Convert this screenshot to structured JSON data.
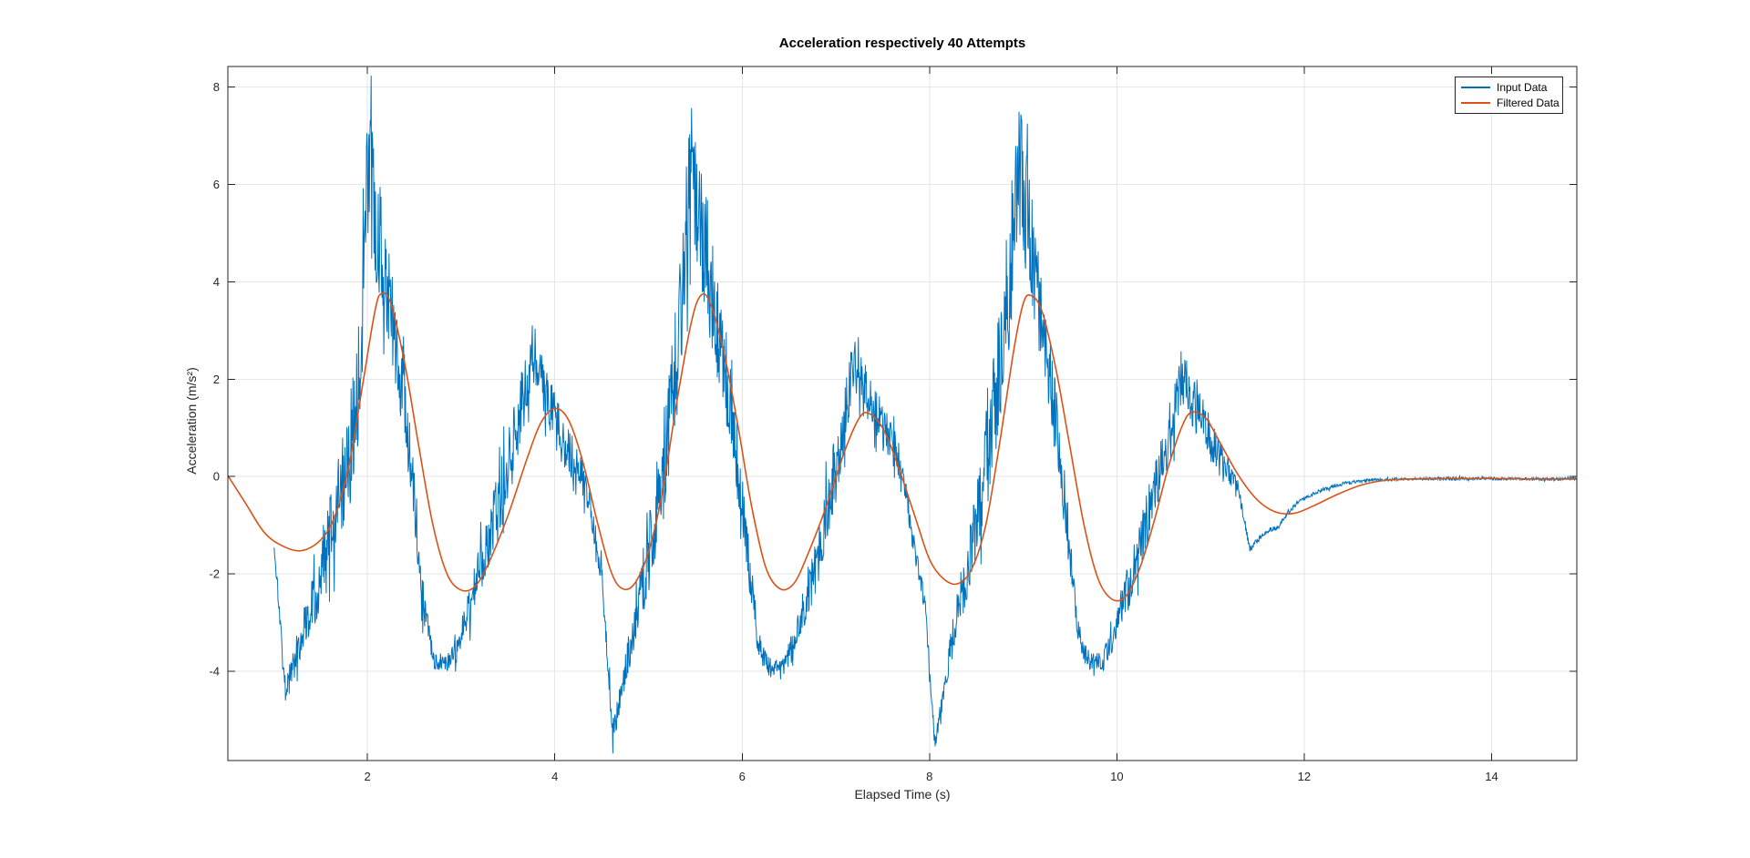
{
  "figure": {
    "title": "Acceleration respectively 40 Attempts",
    "xlabel": "Elapsed Time (s)",
    "ylabel": "Acceleration (m/s²)"
  },
  "chart_data": {
    "type": "line",
    "title": "Acceleration respectively 40 Attempts",
    "xlabel": "Elapsed Time (s)",
    "ylabel": "Acceleration (m/s²)",
    "xlim": [
      0.51,
      14.91
    ],
    "ylim": [
      -5.83,
      8.42
    ],
    "x_ticks": [
      2,
      4,
      6,
      8,
      10,
      12,
      14
    ],
    "y_ticks": [
      -4,
      -2,
      0,
      2,
      4,
      6,
      8
    ],
    "grid": true,
    "grid_color": "#e6e6e6",
    "axis_color": "#262626",
    "legend_position": "northeast",
    "series": [
      {
        "name": "Input Data",
        "color": "#0072BD",
        "style": "noisy",
        "sample_step": 0.005,
        "seed": 1337,
        "midline": [
          [
            1.0,
            -1.4
          ],
          [
            1.05,
            -2.5
          ],
          [
            1.12,
            -4.35
          ],
          [
            1.2,
            -3.9
          ],
          [
            1.35,
            -2.9
          ],
          [
            1.5,
            -2.0
          ],
          [
            1.65,
            -1.0
          ],
          [
            1.8,
            0.3
          ],
          [
            1.92,
            2.2
          ],
          [
            2.0,
            6.3
          ],
          [
            2.05,
            5.8
          ],
          [
            2.15,
            4.6
          ],
          [
            2.3,
            2.8
          ],
          [
            2.45,
            0.6
          ],
          [
            2.6,
            -2.6
          ],
          [
            2.7,
            -3.75
          ],
          [
            2.85,
            -3.85
          ],
          [
            2.95,
            -3.6
          ],
          [
            3.1,
            -2.6
          ],
          [
            3.3,
            -1.2
          ],
          [
            3.5,
            0.2
          ],
          [
            3.65,
            1.5
          ],
          [
            3.78,
            2.4
          ],
          [
            3.9,
            1.7
          ],
          [
            4.05,
            0.9
          ],
          [
            4.2,
            0.35
          ],
          [
            4.35,
            -0.3
          ],
          [
            4.5,
            -2.0
          ],
          [
            4.62,
            -5.3
          ],
          [
            4.72,
            -4.3
          ],
          [
            4.85,
            -3.0
          ],
          [
            5.0,
            -1.6
          ],
          [
            5.15,
            0.0
          ],
          [
            5.3,
            2.3
          ],
          [
            5.45,
            6.6
          ],
          [
            5.55,
            5.3
          ],
          [
            5.7,
            3.6
          ],
          [
            5.9,
            1.2
          ],
          [
            6.05,
            -1.5
          ],
          [
            6.18,
            -3.5
          ],
          [
            6.3,
            -3.95
          ],
          [
            6.45,
            -3.9
          ],
          [
            6.6,
            -3.1
          ],
          [
            6.8,
            -1.7
          ],
          [
            7.0,
            0.2
          ],
          [
            7.18,
            2.3
          ],
          [
            7.3,
            1.9
          ],
          [
            7.45,
            1.2
          ],
          [
            7.6,
            0.7
          ],
          [
            7.72,
            0.1
          ],
          [
            7.82,
            -1.3
          ],
          [
            7.95,
            -2.6
          ],
          [
            8.06,
            -5.55
          ],
          [
            8.18,
            -4.0
          ],
          [
            8.32,
            -2.6
          ],
          [
            8.5,
            -1.0
          ],
          [
            8.68,
            1.2
          ],
          [
            8.85,
            4.0
          ],
          [
            8.95,
            6.4
          ],
          [
            9.1,
            4.6
          ],
          [
            9.3,
            1.9
          ],
          [
            9.45,
            -0.6
          ],
          [
            9.58,
            -3.1
          ],
          [
            9.68,
            -3.75
          ],
          [
            9.85,
            -3.8
          ],
          [
            9.98,
            -3.2
          ],
          [
            10.15,
            -2.1
          ],
          [
            10.35,
            -0.7
          ],
          [
            10.55,
            0.9
          ],
          [
            10.7,
            2.1
          ],
          [
            10.85,
            1.4
          ],
          [
            11.0,
            0.75
          ],
          [
            11.15,
            0.3
          ],
          [
            11.3,
            -0.3
          ],
          [
            11.42,
            -1.5
          ],
          [
            11.52,
            -1.25
          ],
          [
            11.62,
            -1.1
          ],
          [
            11.72,
            -1.05
          ],
          [
            11.82,
            -0.75
          ],
          [
            11.95,
            -0.5
          ],
          [
            12.15,
            -0.3
          ],
          [
            12.4,
            -0.15
          ],
          [
            12.7,
            -0.07
          ],
          [
            13.0,
            -0.05
          ],
          [
            13.5,
            -0.04
          ],
          [
            14.0,
            -0.04
          ],
          [
            14.5,
            -0.05
          ],
          [
            14.91,
            -0.05
          ]
        ],
        "noise_amp": [
          [
            1.0,
            0.1
          ],
          [
            1.05,
            0.2
          ],
          [
            1.12,
            0.3
          ],
          [
            1.2,
            0.35
          ],
          [
            1.35,
            0.5
          ],
          [
            1.5,
            0.8
          ],
          [
            1.65,
            1.0
          ],
          [
            1.8,
            1.1
          ],
          [
            1.92,
            1.3
          ],
          [
            2.0,
            1.5
          ],
          [
            2.05,
            1.4
          ],
          [
            2.15,
            1.2
          ],
          [
            2.3,
            1.0
          ],
          [
            2.45,
            0.7
          ],
          [
            2.6,
            0.5
          ],
          [
            2.7,
            0.2
          ],
          [
            2.85,
            0.18
          ],
          [
            2.95,
            0.25
          ],
          [
            3.1,
            0.45
          ],
          [
            3.3,
            0.65
          ],
          [
            3.5,
            0.7
          ],
          [
            3.65,
            0.7
          ],
          [
            3.78,
            0.55
          ],
          [
            3.9,
            0.6
          ],
          [
            4.05,
            0.55
          ],
          [
            4.2,
            0.45
          ],
          [
            4.35,
            0.35
          ],
          [
            4.5,
            0.3
          ],
          [
            4.62,
            0.25
          ],
          [
            4.72,
            0.3
          ],
          [
            4.85,
            0.5
          ],
          [
            5.0,
            0.8
          ],
          [
            5.15,
            1.1
          ],
          [
            5.3,
            1.4
          ],
          [
            5.45,
            1.6
          ],
          [
            5.55,
            1.4
          ],
          [
            5.7,
            1.2
          ],
          [
            5.9,
            0.9
          ],
          [
            6.05,
            0.6
          ],
          [
            6.18,
            0.3
          ],
          [
            6.3,
            0.18
          ],
          [
            6.45,
            0.18
          ],
          [
            6.6,
            0.35
          ],
          [
            6.8,
            0.6
          ],
          [
            7.0,
            0.75
          ],
          [
            7.18,
            0.6
          ],
          [
            7.3,
            0.55
          ],
          [
            7.45,
            0.55
          ],
          [
            7.6,
            0.45
          ],
          [
            7.72,
            0.3
          ],
          [
            7.82,
            0.25
          ],
          [
            7.95,
            0.2
          ],
          [
            8.06,
            0.15
          ],
          [
            8.18,
            0.3
          ],
          [
            8.32,
            0.5
          ],
          [
            8.5,
            0.8
          ],
          [
            8.68,
            1.2
          ],
          [
            8.85,
            1.4
          ],
          [
            8.95,
            1.4
          ],
          [
            9.1,
            1.2
          ],
          [
            9.3,
            0.9
          ],
          [
            9.45,
            0.6
          ],
          [
            9.58,
            0.35
          ],
          [
            9.68,
            0.2
          ],
          [
            9.85,
            0.2
          ],
          [
            9.98,
            0.3
          ],
          [
            10.15,
            0.5
          ],
          [
            10.35,
            0.6
          ],
          [
            10.55,
            0.65
          ],
          [
            10.7,
            0.6
          ],
          [
            10.85,
            0.55
          ],
          [
            11.0,
            0.45
          ],
          [
            11.15,
            0.3
          ],
          [
            11.3,
            0.12
          ],
          [
            11.42,
            0.06
          ],
          [
            11.52,
            0.05
          ],
          [
            11.62,
            0.05
          ],
          [
            11.72,
            0.04
          ],
          [
            11.82,
            0.04
          ],
          [
            11.95,
            0.04
          ],
          [
            12.15,
            0.04
          ],
          [
            12.4,
            0.035
          ],
          [
            12.7,
            0.03
          ],
          [
            13.0,
            0.03
          ],
          [
            13.5,
            0.03
          ],
          [
            14.0,
            0.03
          ],
          [
            14.5,
            0.03
          ],
          [
            14.91,
            0.03
          ]
        ]
      },
      {
        "name": "Filtered Data",
        "color": "#D95319",
        "style": "smooth",
        "points": [
          [
            0.51,
            0.02
          ],
          [
            0.7,
            -0.55
          ],
          [
            0.9,
            -1.15
          ],
          [
            1.1,
            -1.43
          ],
          [
            1.3,
            -1.52
          ],
          [
            1.5,
            -1.3
          ],
          [
            1.65,
            -0.82
          ],
          [
            1.8,
            0.2
          ],
          [
            1.95,
            1.9
          ],
          [
            2.08,
            3.4
          ],
          [
            2.15,
            3.76
          ],
          [
            2.25,
            3.55
          ],
          [
            2.4,
            2.3
          ],
          [
            2.55,
            0.6
          ],
          [
            2.7,
            -1.0
          ],
          [
            2.85,
            -2.0
          ],
          [
            3.0,
            -2.33
          ],
          [
            3.15,
            -2.25
          ],
          [
            3.3,
            -1.75
          ],
          [
            3.5,
            -0.8
          ],
          [
            3.7,
            0.35
          ],
          [
            3.85,
            1.1
          ],
          [
            4.0,
            1.4
          ],
          [
            4.15,
            1.15
          ],
          [
            4.3,
            0.3
          ],
          [
            4.45,
            -0.9
          ],
          [
            4.6,
            -1.95
          ],
          [
            4.72,
            -2.3
          ],
          [
            4.85,
            -2.2
          ],
          [
            5.0,
            -1.55
          ],
          [
            5.15,
            -0.3
          ],
          [
            5.3,
            1.5
          ],
          [
            5.45,
            3.1
          ],
          [
            5.55,
            3.7
          ],
          [
            5.65,
            3.6
          ],
          [
            5.8,
            2.6
          ],
          [
            5.95,
            1.1
          ],
          [
            6.1,
            -0.6
          ],
          [
            6.25,
            -1.85
          ],
          [
            6.4,
            -2.3
          ],
          [
            6.55,
            -2.2
          ],
          [
            6.7,
            -1.6
          ],
          [
            6.9,
            -0.6
          ],
          [
            7.1,
            0.55
          ],
          [
            7.25,
            1.2
          ],
          [
            7.35,
            1.3
          ],
          [
            7.5,
            1.0
          ],
          [
            7.65,
            0.3
          ],
          [
            7.85,
            -0.85
          ],
          [
            8.0,
            -1.7
          ],
          [
            8.15,
            -2.1
          ],
          [
            8.3,
            -2.2
          ],
          [
            8.45,
            -1.9
          ],
          [
            8.6,
            -1.0
          ],
          [
            8.75,
            0.7
          ],
          [
            8.9,
            2.6
          ],
          [
            9.0,
            3.55
          ],
          [
            9.08,
            3.72
          ],
          [
            9.2,
            3.4
          ],
          [
            9.35,
            2.2
          ],
          [
            9.5,
            0.6
          ],
          [
            9.65,
            -1.0
          ],
          [
            9.8,
            -2.1
          ],
          [
            9.95,
            -2.52
          ],
          [
            10.1,
            -2.45
          ],
          [
            10.25,
            -1.85
          ],
          [
            10.4,
            -0.9
          ],
          [
            10.55,
            0.2
          ],
          [
            10.7,
            1.05
          ],
          [
            10.8,
            1.32
          ],
          [
            10.95,
            1.2
          ],
          [
            11.1,
            0.7
          ],
          [
            11.3,
            0.02
          ],
          [
            11.5,
            -0.48
          ],
          [
            11.7,
            -0.73
          ],
          [
            11.9,
            -0.75
          ],
          [
            12.1,
            -0.6
          ],
          [
            12.35,
            -0.37
          ],
          [
            12.6,
            -0.18
          ],
          [
            12.85,
            -0.08
          ],
          [
            13.1,
            -0.05
          ],
          [
            13.5,
            -0.04
          ],
          [
            14.0,
            -0.04
          ],
          [
            14.5,
            -0.05
          ],
          [
            14.91,
            -0.05
          ]
        ]
      }
    ]
  }
}
